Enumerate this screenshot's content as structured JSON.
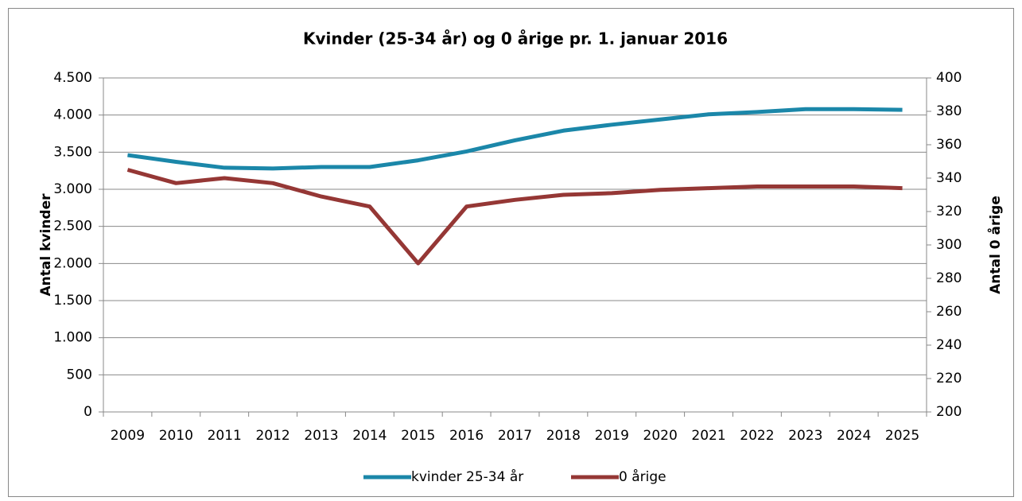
{
  "chart_data": {
    "type": "line",
    "title": "Kvinder (25-34 år) og 0 årige pr. 1. januar 2016",
    "ylabel": "Antal kvinder",
    "y2label": "Antal 0 årige",
    "categories": [
      "2009",
      "2010",
      "2011",
      "2012",
      "2013",
      "2014",
      "2015",
      "2016",
      "2017",
      "2018",
      "2019",
      "2020",
      "2021",
      "2022",
      "2023",
      "2024",
      "2025"
    ],
    "series": [
      {
        "name": "kvinder 25-34 år",
        "color": "#1b87a9",
        "values": [
          3460,
          3370,
          3290,
          3280,
          3300,
          3300,
          3390,
          3510,
          3660,
          3790,
          3870,
          3940,
          4010,
          4040,
          4080,
          4080,
          4070
        ]
      },
      {
        "name": "0 årige",
        "color": "#953735",
        "axis": "y2",
        "values": [
          345,
          337,
          340,
          337,
          329,
          323,
          289,
          323,
          327,
          330,
          331,
          333,
          334,
          335,
          335,
          335,
          334
        ]
      }
    ],
    "ylim": [
      0,
      4500
    ],
    "yticks": [
      0,
      500,
      {
        "value": 1000,
        "label": "1.000"
      },
      {
        "value": 1500,
        "label": "1.500"
      },
      {
        "value": 2000,
        "label": "2.000"
      },
      {
        "value": 2500,
        "label": "2.500"
      },
      {
        "value": 3000,
        "label": "3.000"
      },
      {
        "value": 3500,
        "label": "3.500"
      },
      {
        "value": 4000,
        "label": "4.000"
      },
      {
        "value": 4500,
        "label": "4.500"
      }
    ],
    "y2lim": [
      200,
      400
    ],
    "y2ticks": [
      200,
      220,
      240,
      260,
      280,
      300,
      320,
      340,
      360,
      380,
      400
    ],
    "grid": true,
    "legend": "bottom"
  }
}
